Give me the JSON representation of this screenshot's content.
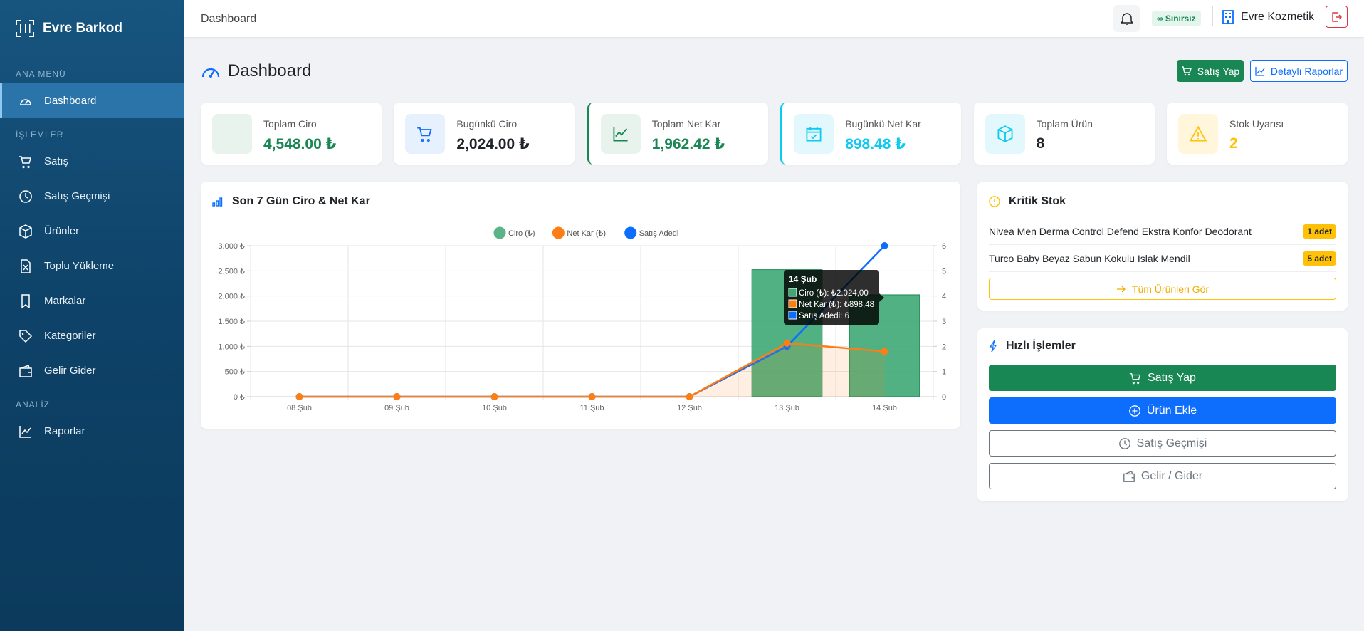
{
  "sidebar": {
    "brand": "Evre Barkod",
    "sections": [
      {
        "title": "ANA MENÜ",
        "items": [
          "Dashboard"
        ]
      },
      {
        "title": "İŞLEMLER",
        "items": [
          "Satış",
          "Satış Geçmişi",
          "Ürünler",
          "Toplu Yükleme",
          "Markalar",
          "Kategoriler",
          "Gelir Gider"
        ]
      },
      {
        "title": "ANALİZ",
        "items": [
          "Raporlar"
        ]
      }
    ]
  },
  "topbar": {
    "title": "Dashboard",
    "badge": "∞ Sınırsız",
    "company": "Evre Kozmetik"
  },
  "header": {
    "title": "Dashboard",
    "buttons": [
      "Satış Yap",
      "Detaylı Raporlar"
    ]
  },
  "stats": [
    {
      "label": "Toplam Ciro",
      "value": "4,548.00 ₺"
    },
    {
      "label": "Bugünkü Ciro",
      "value": "2,024.00 ₺"
    },
    {
      "label": "Toplam Net Kar",
      "value": "1,962.42 ₺"
    },
    {
      "label": "Bugünkü Net Kar",
      "value": "898.48 ₺"
    },
    {
      "label": "Toplam Ürün",
      "value": "8"
    },
    {
      "label": "Stok Uyarısı",
      "value": "2"
    }
  ],
  "chart_data": {
    "type": "bar",
    "title": "Son 7 Gün Ciro & Net Kar",
    "categories": [
      "08 Şub",
      "09 Şub",
      "10 Şub",
      "11 Şub",
      "12 Şub",
      "13 Şub",
      "14 Şub"
    ],
    "series": [
      {
        "name": "Ciro (₺)",
        "type": "bar",
        "color": "#3fa874",
        "values": [
          0,
          0,
          0,
          0,
          0,
          2524,
          2024
        ]
      },
      {
        "name": "Net Kar (₺)",
        "type": "line",
        "fill": true,
        "color": "#fd7e14",
        "values": [
          0,
          0,
          0,
          0,
          0,
          1063.94,
          898.48
        ]
      },
      {
        "name": "Satış Adedi",
        "type": "line",
        "axis": "y2",
        "color": "#0d6efd",
        "values": [
          0,
          0,
          0,
          0,
          0,
          2,
          6
        ]
      }
    ],
    "ylim": [
      0,
      3000
    ],
    "yticks": [
      {
        "value": 0,
        "label": "0 ₺"
      },
      {
        "value": 500,
        "label": "500 ₺"
      },
      {
        "value": 1000,
        "label": "1.000 ₺"
      },
      {
        "value": 1500,
        "label": "1.500 ₺"
      },
      {
        "value": 2000,
        "label": "2.000 ₺"
      },
      {
        "value": 2500,
        "label": "2.500 ₺"
      },
      {
        "value": 3000,
        "label": "3.000 ₺"
      }
    ],
    "y2lim": [
      0,
      6
    ],
    "y2ticks": [
      0,
      1,
      2,
      3,
      4,
      5,
      6
    ],
    "grid": true,
    "legend": "top",
    "tooltip": {
      "title": "14 Şub",
      "lines": [
        "Ciro (₺): ₺2.024,00",
        "Net Kar (₺): ₺898,48",
        "Satış Adedi: 6"
      ]
    }
  },
  "critical_stock": {
    "title": "Kritik Stok",
    "items": [
      {
        "name": "Nivea Men Derma Control Defend Ekstra Konfor Deodorant",
        "badge": "1 adet"
      },
      {
        "name": "Turco Baby Beyaz Sabun Kokulu Islak Mendil",
        "badge": "5 adet"
      }
    ],
    "button": "Tüm Ürünleri Gör"
  },
  "quick_actions": {
    "title": "Hızlı İşlemler",
    "buttons": [
      "Satış Yap",
      "Ürün Ekle",
      "Satış Geçmişi",
      "Gelir / Gider"
    ]
  }
}
